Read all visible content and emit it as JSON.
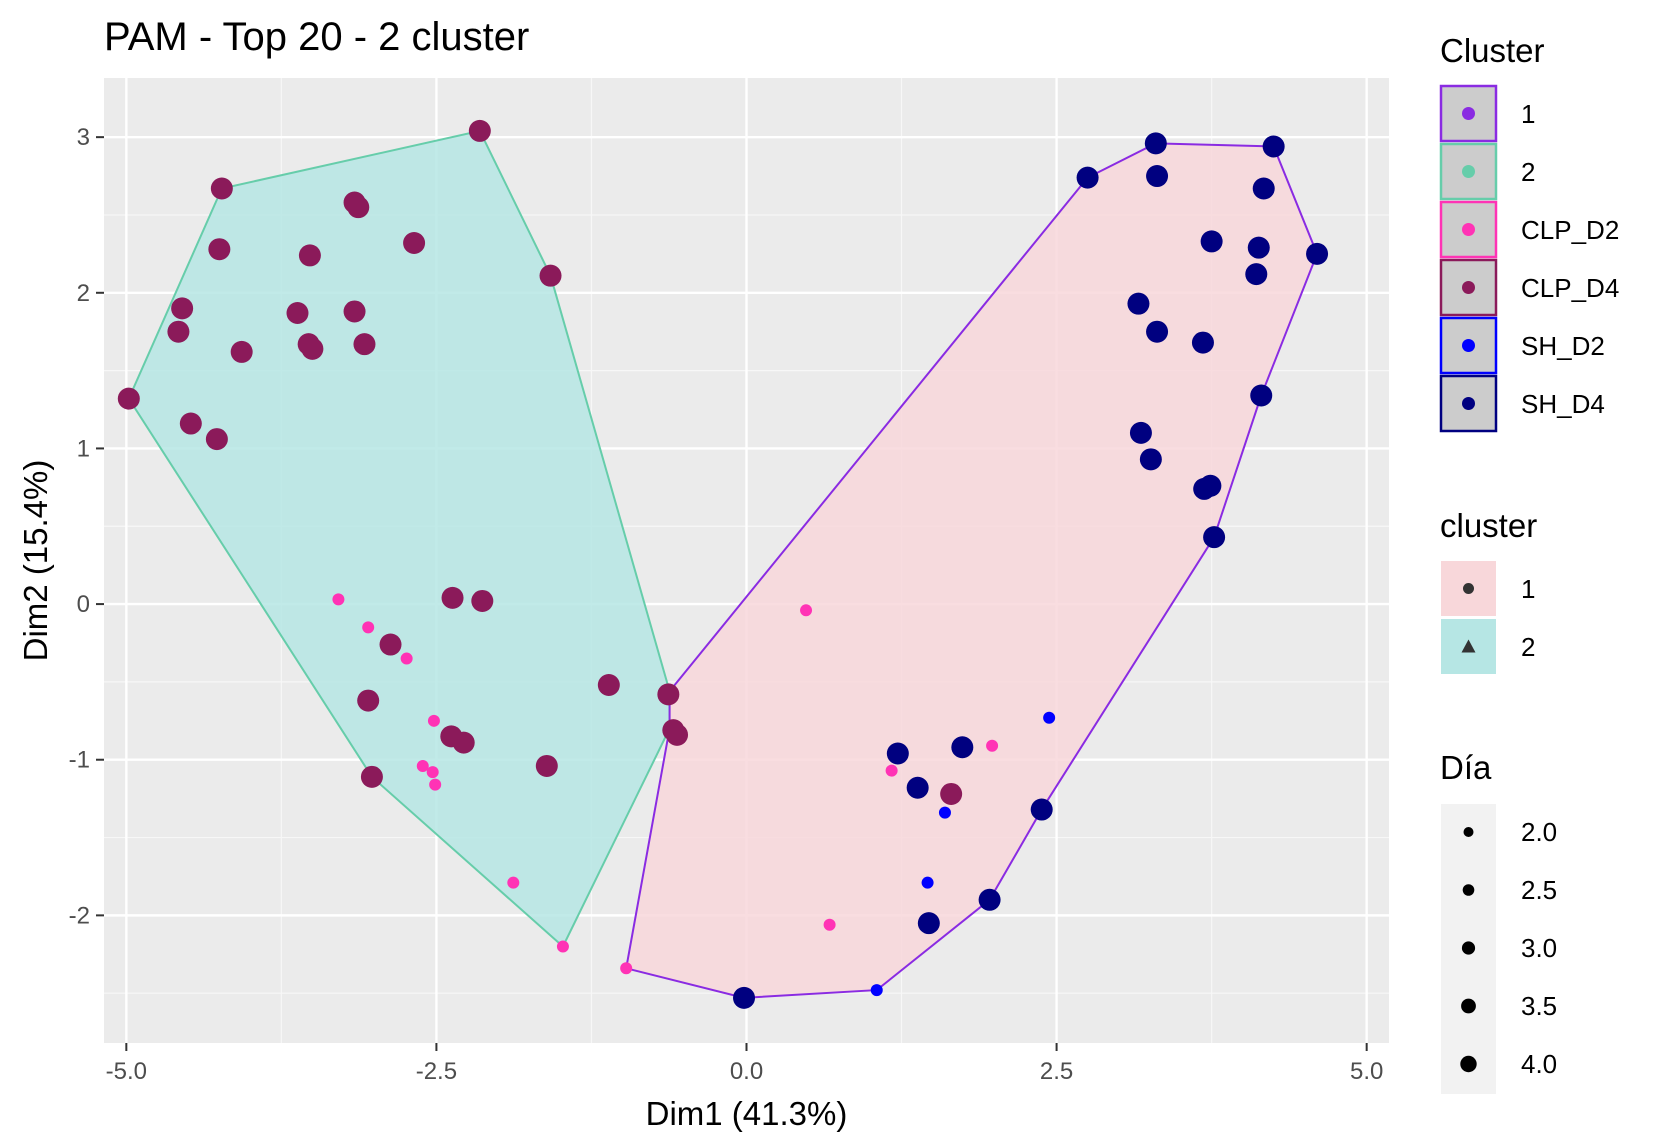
{
  "chart_data": {
    "type": "scatter",
    "title": "PAM - Top 20 - 2 cluster",
    "xlabel": "Dim1 (41.3%)",
    "ylabel": "Dim2 (15.4%)",
    "xlim": [
      -5.18,
      5.18
    ],
    "ylim": [
      -2.82,
      3.38
    ],
    "x_ticks": [
      -5.0,
      -2.5,
      0.0,
      2.5,
      5.0
    ],
    "x_tick_labels": [
      "-5.0",
      "-2.5",
      "0.0",
      "2.5",
      "5.0"
    ],
    "y_ticks": [
      -2,
      -1,
      0,
      1,
      2,
      3
    ],
    "y_tick_labels": [
      "-2",
      "-1",
      "0",
      "1",
      "2",
      "3"
    ],
    "grid": true,
    "legend_position": "right",
    "colors": {
      "panel_bg": "#ebebeb",
      "grid": "#ffffff",
      "CLP_D2": "#ff33b5",
      "CLP_D4": "#8b1a5a",
      "SH_D2": "#0000ff",
      "SH_D4": "#000080",
      "cluster_1_line": "#8a2be2",
      "cluster_2_line": "#66cdaa",
      "cluster_1_fill": "#f8d7da",
      "cluster_2_fill": "#b6e6e4"
    },
    "hulls": [
      {
        "cluster": "2",
        "points": [
          [
            -2.15,
            3.04
          ],
          [
            -1.58,
            2.11
          ],
          [
            -0.62,
            -0.56
          ],
          [
            -0.62,
            -0.8
          ],
          [
            -1.48,
            -2.2
          ],
          [
            -3.02,
            -1.11
          ],
          [
            -4.98,
            1.32
          ],
          [
            -4.23,
            2.67
          ]
        ]
      },
      {
        "cluster": "1",
        "points": [
          [
            -0.62,
            -0.56
          ],
          [
            2.75,
            2.74
          ],
          [
            3.3,
            2.96
          ],
          [
            4.25,
            2.94
          ],
          [
            4.6,
            2.25
          ],
          [
            4.15,
            1.34
          ],
          [
            3.77,
            0.43
          ],
          [
            2.38,
            -1.32
          ],
          [
            1.96,
            -1.9
          ],
          [
            1.05,
            -2.48
          ],
          [
            -0.02,
            -2.53
          ],
          [
            -0.97,
            -2.34
          ],
          [
            -0.62,
            -0.8
          ]
        ]
      }
    ],
    "series": [
      {
        "name": "CLP_D4",
        "dia": 4,
        "points": [
          [
            -2.15,
            3.04
          ],
          [
            -4.23,
            2.67
          ],
          [
            -3.16,
            2.58
          ],
          [
            -3.13,
            2.55
          ],
          [
            -2.68,
            2.32
          ],
          [
            -4.25,
            2.28
          ],
          [
            -3.52,
            2.24
          ],
          [
            -1.58,
            2.11
          ],
          [
            -4.55,
            1.9
          ],
          [
            -3.62,
            1.87
          ],
          [
            -3.16,
            1.88
          ],
          [
            -4.58,
            1.75
          ],
          [
            -3.53,
            1.67
          ],
          [
            -3.5,
            1.64
          ],
          [
            -3.08,
            1.67
          ],
          [
            -4.07,
            1.62
          ],
          [
            -4.98,
            1.32
          ],
          [
            -4.48,
            1.16
          ],
          [
            -4.27,
            1.06
          ],
          [
            -2.37,
            0.04
          ],
          [
            -2.13,
            0.02
          ],
          [
            -2.87,
            -0.26
          ],
          [
            -1.11,
            -0.52
          ],
          [
            -3.05,
            -0.62
          ],
          [
            -0.63,
            -0.58
          ],
          [
            -0.59,
            -0.81
          ],
          [
            -0.56,
            -0.84
          ],
          [
            -2.38,
            -0.85
          ],
          [
            -2.28,
            -0.89
          ],
          [
            -1.61,
            -1.04
          ],
          [
            -3.02,
            -1.11
          ],
          [
            1.65,
            -1.22
          ]
        ]
      },
      {
        "name": "CLP_D2",
        "dia": 2,
        "points": [
          [
            -3.29,
            0.03
          ],
          [
            -3.05,
            -0.15
          ],
          [
            -2.74,
            -0.35
          ],
          [
            -2.52,
            -0.75
          ],
          [
            -2.61,
            -1.04
          ],
          [
            -2.53,
            -1.08
          ],
          [
            -2.51,
            -1.16
          ],
          [
            -1.88,
            -1.79
          ],
          [
            -1.48,
            -2.2
          ],
          [
            -0.97,
            -2.34
          ],
          [
            0.48,
            -0.04
          ],
          [
            1.17,
            -1.07
          ],
          [
            1.98,
            -0.91
          ],
          [
            0.67,
            -2.06
          ]
        ]
      },
      {
        "name": "SH_D4",
        "dia": 4,
        "points": [
          [
            3.3,
            2.96
          ],
          [
            4.25,
            2.94
          ],
          [
            2.75,
            2.74
          ],
          [
            3.31,
            2.75
          ],
          [
            4.17,
            2.67
          ],
          [
            3.75,
            2.33
          ],
          [
            4.13,
            2.29
          ],
          [
            4.6,
            2.25
          ],
          [
            4.11,
            2.12
          ],
          [
            3.16,
            1.93
          ],
          [
            3.31,
            1.75
          ],
          [
            3.68,
            1.68
          ],
          [
            4.15,
            1.34
          ],
          [
            3.18,
            1.1
          ],
          [
            3.26,
            0.93
          ],
          [
            3.69,
            0.74
          ],
          [
            3.74,
            0.76
          ],
          [
            3.77,
            0.43
          ],
          [
            1.22,
            -0.96
          ],
          [
            1.74,
            -0.92
          ],
          [
            1.38,
            -1.18
          ],
          [
            2.38,
            -1.32
          ],
          [
            1.47,
            -2.05
          ],
          [
            1.96,
            -1.9
          ],
          [
            -0.02,
            -2.53
          ]
        ]
      },
      {
        "name": "SH_D2",
        "dia": 2,
        "points": [
          [
            2.44,
            -0.73
          ],
          [
            1.6,
            -1.34
          ],
          [
            1.46,
            -1.79
          ],
          [
            1.05,
            -2.48
          ]
        ]
      }
    ],
    "legend_cluster": {
      "title": "Cluster",
      "items": [
        {
          "label": "1",
          "color": "#8a2be2",
          "border": "#8a2be2",
          "bg": "#cccccc"
        },
        {
          "label": "2",
          "color": "#66cdaa",
          "border": "#66cdaa",
          "bg": "#cccccc"
        },
        {
          "label": "CLP_D2",
          "color": "#ff33b5",
          "border": "#ff33b5",
          "bg": "#cccccc"
        },
        {
          "label": "CLP_D4",
          "color": "#8b1a5a",
          "border": "#8b1a5a",
          "bg": "#cccccc"
        },
        {
          "label": "SH_D2",
          "color": "#0000ff",
          "border": "#0000ff",
          "bg": "#cccccc"
        },
        {
          "label": "SH_D4",
          "color": "#000080",
          "border": "#000080",
          "bg": "#cccccc"
        }
      ]
    },
    "legend_fill": {
      "title": "cluster",
      "items": [
        {
          "label": "1",
          "shape": "circle",
          "bg": "#f8d7da"
        },
        {
          "label": "2",
          "shape": "triangle",
          "bg": "#b6e6e4"
        }
      ]
    },
    "legend_size": {
      "title": "Día",
      "items": [
        {
          "label": "2.0",
          "value": 2.0
        },
        {
          "label": "2.5",
          "value": 2.5
        },
        {
          "label": "3.0",
          "value": 3.0
        },
        {
          "label": "3.5",
          "value": 3.5
        },
        {
          "label": "4.0",
          "value": 4.0
        }
      ]
    }
  }
}
